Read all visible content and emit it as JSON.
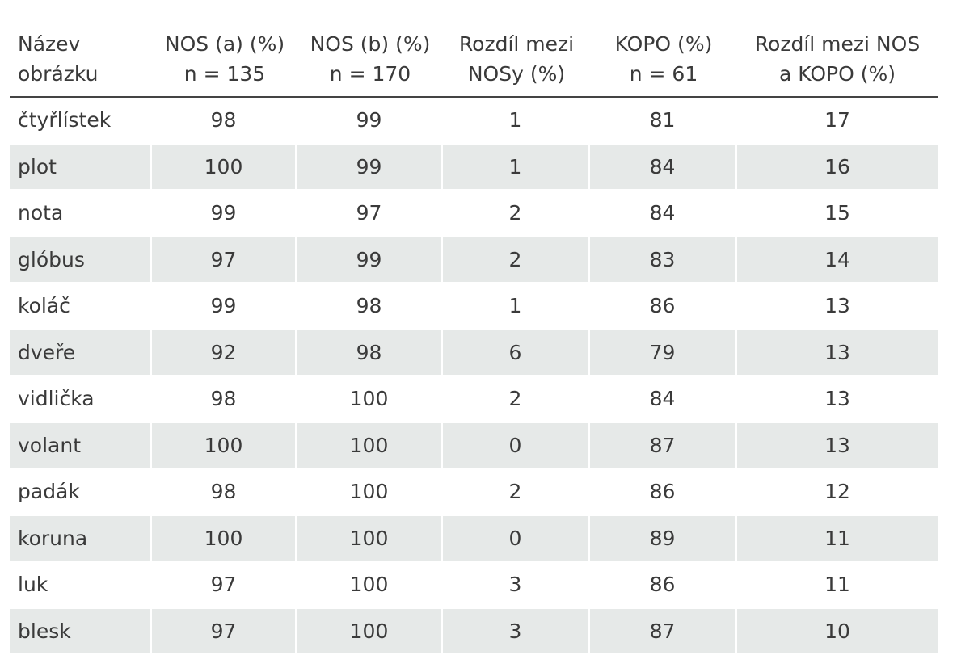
{
  "table": {
    "headers": [
      {
        "line1": "Název",
        "line2": "obrázku"
      },
      {
        "line1": "NOS (a) (%)",
        "line2": "n = 135"
      },
      {
        "line1": "NOS (b) (%)",
        "line2": "n = 170"
      },
      {
        "line1": "Rozdíl mezi",
        "line2": "NOSy (%)"
      },
      {
        "line1": "KOPO (%)",
        "line2": "n = 61"
      },
      {
        "line1": "Rozdíl mezi NOS",
        "line2": "a KOPO (%)"
      }
    ],
    "rows": [
      [
        "čtyřlístek",
        "98",
        "99",
        "1",
        "81",
        "17"
      ],
      [
        "plot",
        "100",
        "99",
        "1",
        "84",
        "16"
      ],
      [
        "nota",
        "99",
        "97",
        "2",
        "84",
        "15"
      ],
      [
        "glóbus",
        "97",
        "99",
        "2",
        "83",
        "14"
      ],
      [
        "koláč",
        "99",
        "98",
        "1",
        "86",
        "13"
      ],
      [
        "dveře",
        "92",
        "98",
        "6",
        "79",
        "13"
      ],
      [
        "vidlička",
        "98",
        "100",
        "2",
        "84",
        "13"
      ],
      [
        "volant",
        "100",
        "100",
        "0",
        "87",
        "13"
      ],
      [
        "padák",
        "98",
        "100",
        "2",
        "86",
        "12"
      ],
      [
        "koruna",
        "100",
        "100",
        "0",
        "89",
        "11"
      ],
      [
        "luk",
        "97",
        "100",
        "3",
        "86",
        "11"
      ],
      [
        "blesk",
        "97",
        "100",
        "3",
        "87",
        "10"
      ]
    ]
  },
  "colors": {
    "shade": "#e6e9e8",
    "text": "#3a3a3a",
    "rule": "#444444"
  }
}
